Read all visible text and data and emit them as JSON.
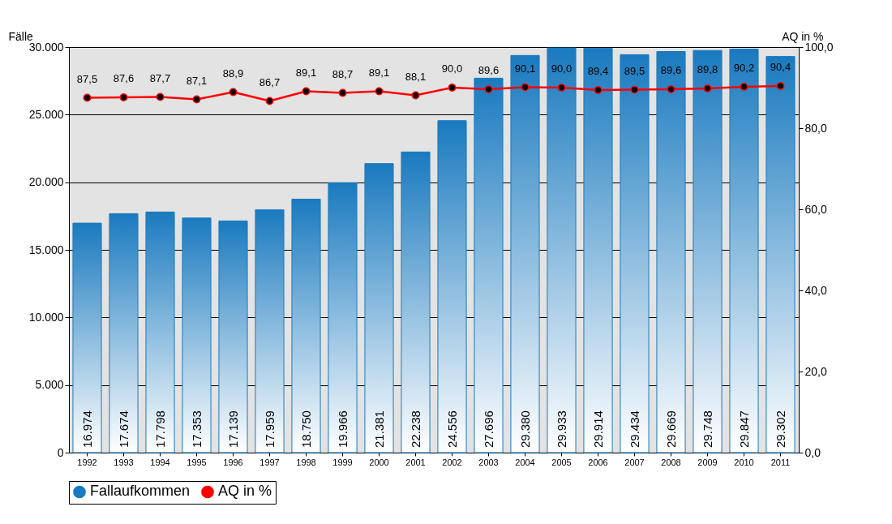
{
  "chart_data": {
    "type": "bar",
    "categories": [
      "1992",
      "1993",
      "1994",
      "1995",
      "1996",
      "1997",
      "1998",
      "1999",
      "2000",
      "2001",
      "2002",
      "2003",
      "2004",
      "2005",
      "2006",
      "2007",
      "2008",
      "2009",
      "2010",
      "2011"
    ],
    "ylabel": "Fälle",
    "y2label": "AQ in %",
    "series": [
      {
        "name": "Fallaufkommen",
        "color": "#1a7abf",
        "values": [
          16974,
          17674,
          17798,
          17353,
          17139,
          17959,
          18750,
          19966,
          21381,
          22238,
          24556,
          27696,
          29380,
          29933,
          29914,
          29434,
          29669,
          29748,
          29847,
          29302
        ],
        "value_labels": [
          "16.974",
          "17.674",
          "17.798",
          "17.353",
          "17.139",
          "17.959",
          "18.750",
          "19.966",
          "21.381",
          "22.238",
          "24.556",
          "27.696",
          "29.380",
          "29.933",
          "29.914",
          "29.434",
          "29.669",
          "29.748",
          "29.847",
          "29.302"
        ]
      },
      {
        "name": "AQ in %",
        "type": "line",
        "axis": "y2",
        "color": "#ff0000",
        "marker": "circle",
        "values": [
          87.5,
          87.6,
          87.7,
          87.1,
          88.9,
          86.7,
          89.1,
          88.7,
          89.1,
          88.1,
          90.0,
          89.6,
          90.1,
          90.0,
          89.4,
          89.5,
          89.6,
          89.8,
          90.2,
          90.4
        ],
        "value_labels": [
          "87,5",
          "87,6",
          "87,7",
          "87,1",
          "88,9",
          "86,7",
          "89,1",
          "88,7",
          "89,1",
          "88,1",
          "90,0",
          "89,6",
          "90,1",
          "90,0",
          "89,4",
          "89,5",
          "89,6",
          "89,8",
          "90,2",
          "90,4"
        ]
      }
    ],
    "ylim": [
      0,
      30000
    ],
    "yticks": [
      0,
      {
        "value": 5000,
        "label": "5.000"
      },
      {
        "value": 10000,
        "label": "10.000"
      },
      {
        "value": 15000,
        "label": "15.000"
      },
      {
        "value": 20000,
        "label": "20.000"
      },
      {
        "value": 25000,
        "label": "25.000"
      },
      {
        "value": 30000,
        "label": "30.000"
      }
    ],
    "y2lim": [
      0,
      100
    ],
    "y2ticks": [
      {
        "value": 0,
        "label": "0,0"
      },
      {
        "value": 20,
        "label": "20,0"
      },
      {
        "value": 40,
        "label": "40,0"
      },
      {
        "value": 60,
        "label": "60,0"
      },
      {
        "value": 80,
        "label": "80,0"
      },
      {
        "value": 100,
        "label": "100,0"
      }
    ],
    "grid": "y",
    "legend": "bottom"
  }
}
